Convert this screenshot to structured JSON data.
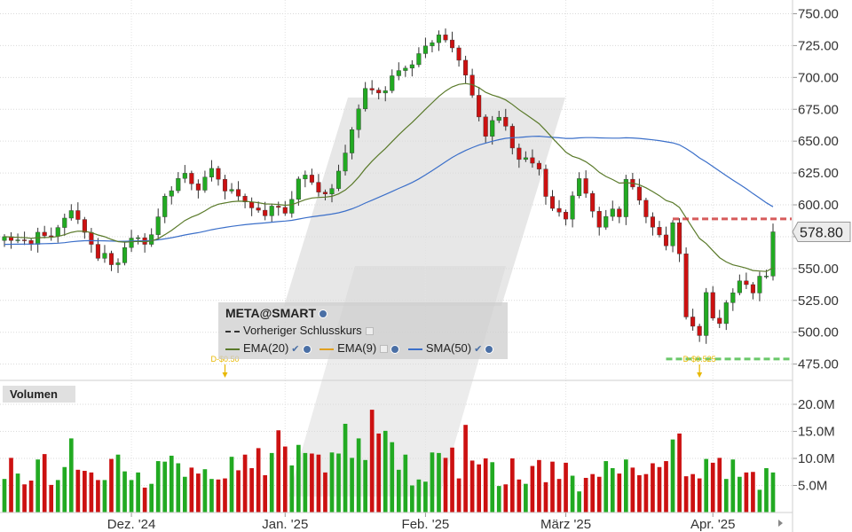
{
  "chart_data": [
    {
      "type": "candlestick",
      "symbol": "META@SMART",
      "y_ticks": [
        "750.00",
        "725.00",
        "700.00",
        "675.00",
        "650.00",
        "625.00",
        "600.00",
        "575.00",
        "550.00",
        "525.00",
        "500.00",
        "475.00"
      ],
      "ylim": [
        465,
        758
      ],
      "x_ticks": [
        "Dez. '24",
        "Jan. '25",
        "Feb. '25",
        "März '25",
        "Apr. '25"
      ],
      "last_price_label": "578.80",
      "previous_close": 589,
      "support_level": 479,
      "dividends": [
        {
          "label": "D-$0.50",
          "bar_index": 33
        },
        {
          "label": "D-$0.525",
          "bar_index": 104
        }
      ],
      "legend": {
        "title": "META@SMART",
        "entries": [
          "Vorheriger Schlusskurs",
          "EMA(20)",
          "EMA(9)",
          "SMA(50)"
        ]
      },
      "colors": {
        "up": "#22aa22",
        "down": "#cc1111",
        "ema20": "#5a7a2a",
        "ema9": "#e0a020",
        "sma50": "#3b6fc9",
        "prev_close": "#cc3333",
        "support": "#44bb44",
        "dividend": "#e8b800"
      },
      "closes": [
        575.0,
        572.0,
        572.5,
        572.0,
        569.0,
        578.5,
        575.7,
        575.3,
        582.2,
        589.6,
        595.5,
        588.5,
        578.4,
        569.0,
        558.0,
        562.0,
        553.0,
        554.5,
        566.5,
        573.9,
        574.2,
        569.0,
        576.6,
        590.6,
        606.8,
        611.1,
        620.7,
        624.8,
        616.5,
        611.5,
        621.8,
        628.6,
        620.1,
        610.8,
        612.1,
        606.8,
        602.3,
        597.6,
        595.8,
        591.4,
        599.0,
        598.0,
        593.4,
        604.3,
        620.3,
        623.4,
        617.7,
        610.0,
        608.5,
        612.8,
        626.5,
        640.7,
        659.0,
        675.3,
        691.4,
        690.1,
        687.8,
        689.6,
        701.3,
        705.4,
        707.3,
        710.0,
        718.7,
        724.7,
        727.3,
        733.4,
        729.4,
        723.2,
        713.5,
        701.8,
        686.0,
        669.0,
        653.8,
        666.2,
        668.8,
        661.7,
        644.6,
        635.6,
        637.0,
        632.7,
        628.1,
        606.6,
        597.2,
        594.3,
        588.8,
        607.1,
        620.6,
        609.0,
        595.0,
        582.4,
        590.9,
        596.8,
        590.6,
        620.1,
        614.0,
        603.6,
        590.6,
        582.4,
        576.4,
        567.8,
        586.0,
        561.6,
        512.0,
        504.7,
        497.4,
        531.2,
        511.1,
        506.8,
        523.2,
        531.0,
        540.3,
        537.4,
        530.8,
        544.0,
        544.1,
        578.8
      ],
      "volumes": [
        6.2,
        10.1,
        7.2,
        5.2,
        5.9,
        9.8,
        10.8,
        5.1,
        6.0,
        8.4,
        13.7,
        7.9,
        7.7,
        7.4,
        6.0,
        6.0,
        9.9,
        10.7,
        7.6,
        6.0,
        7.4,
        4.6,
        5.3,
        9.5,
        9.4,
        10.5,
        9.1,
        6.6,
        8.3,
        7.2,
        8.0,
        6.2,
        6.1,
        6.3,
        10.3,
        7.8,
        10.7,
        8.2,
        11.9,
        6.9,
        11.0,
        15.2,
        12.2,
        8.7,
        12.5,
        11.0,
        10.9,
        10.7,
        7.4,
        11.1,
        10.9,
        16.4,
        10.1,
        13.7,
        9.7,
        19.0,
        14.6,
        15.1,
        13.0,
        7.9,
        10.7,
        5.0,
        6.1,
        5.7,
        11.1,
        11.0,
        10.1,
        12.0,
        6.3,
        16.2,
        9.6,
        8.9,
        10.0,
        9.3,
        4.9,
        5.2,
        10.0,
        6.1,
        5.3,
        8.6,
        9.7,
        5.6,
        9.4,
        6.2,
        9.2,
        6.8,
        3.9,
        6.4,
        7.1,
        6.6,
        9.5,
        8.2,
        7.2,
        9.8,
        8.3,
        6.9,
        7.1,
        9.1,
        8.4,
        9.5,
        13.5,
        14.6,
        6.7,
        7.1,
        6.3,
        9.9,
        9.2,
        10.1,
        6.2,
        9.8,
        6.6,
        7.4,
        7.5,
        4.2,
        8.2,
        7.4
      ]
    }
  ]
}
